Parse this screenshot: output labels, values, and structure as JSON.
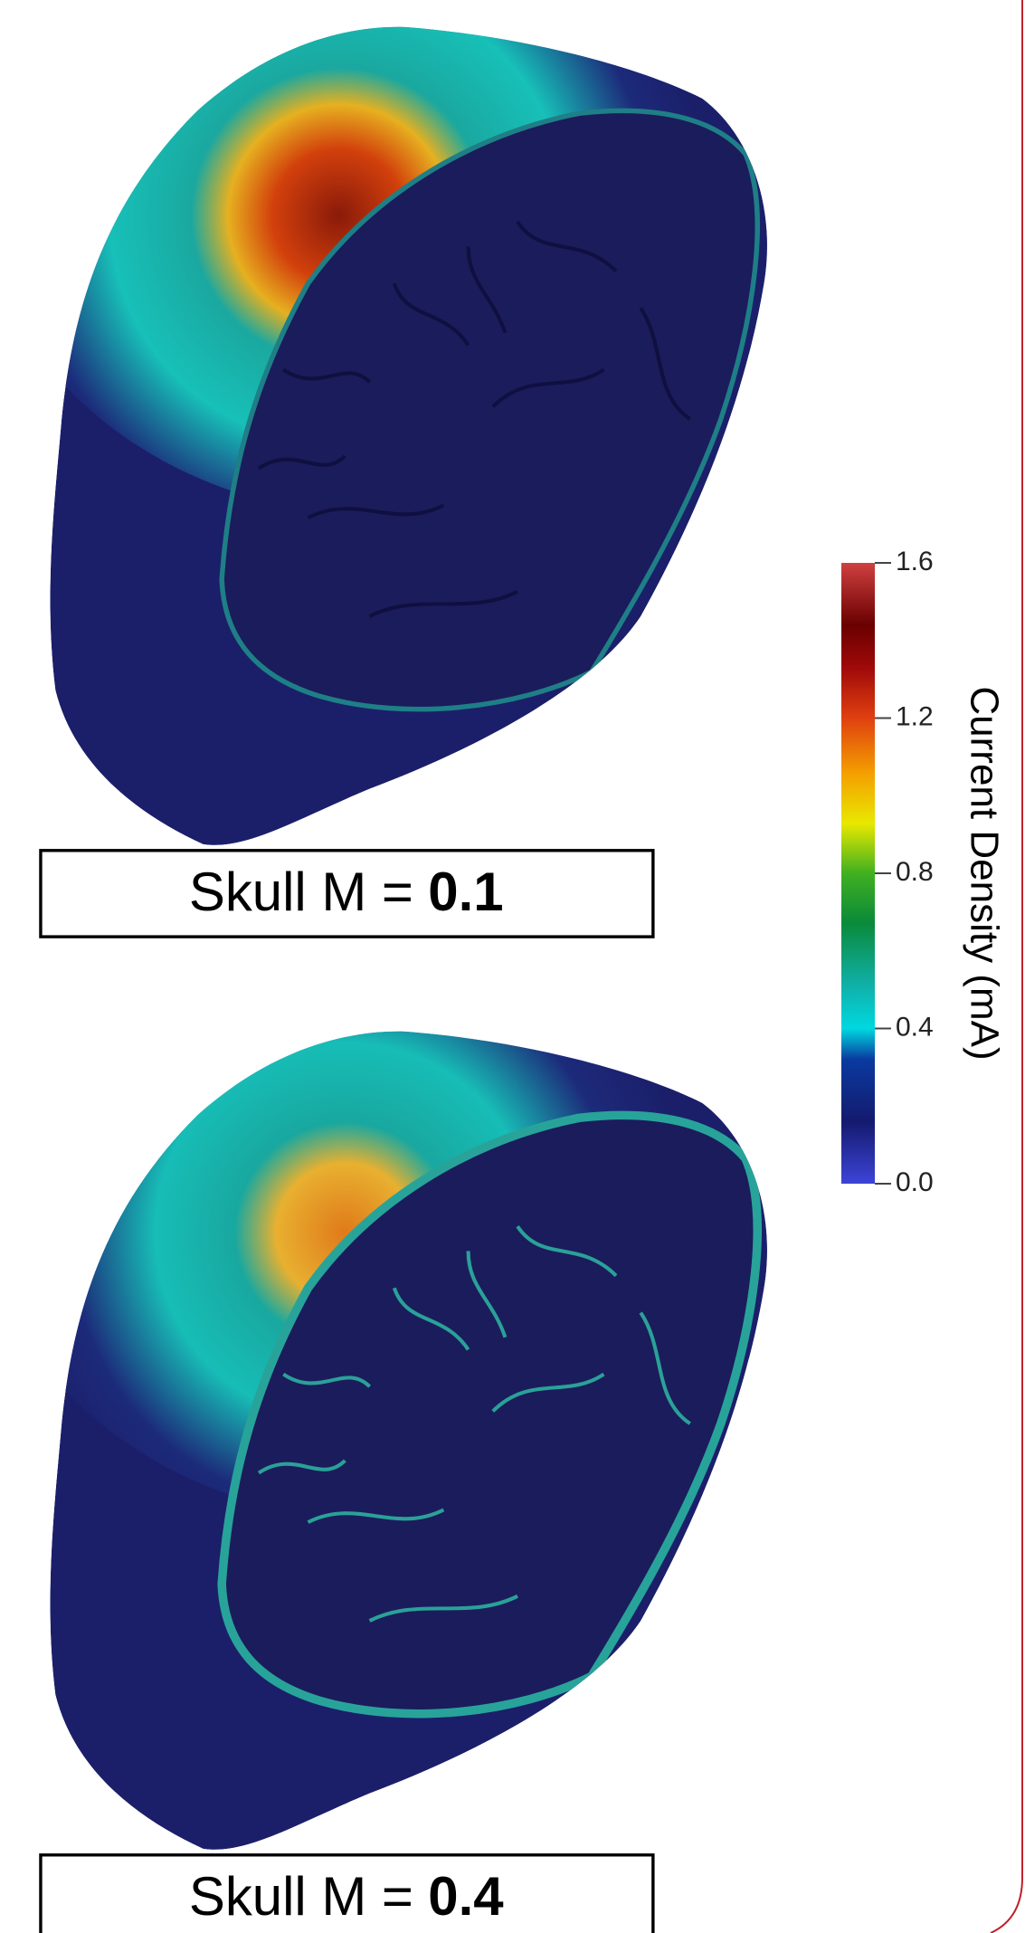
{
  "panels": [
    {
      "label": "Skull M =",
      "value": 0.1
    },
    {
      "label": "Skull M =",
      "value": 0.4
    }
  ],
  "colorbar": {
    "title": "Current Density (mA)",
    "range": [
      0,
      1.6
    ],
    "ticks": [
      {
        "value": 0,
        "label": "0.0"
      },
      0.4,
      0.8,
      1.2,
      1.6
    ]
  }
}
